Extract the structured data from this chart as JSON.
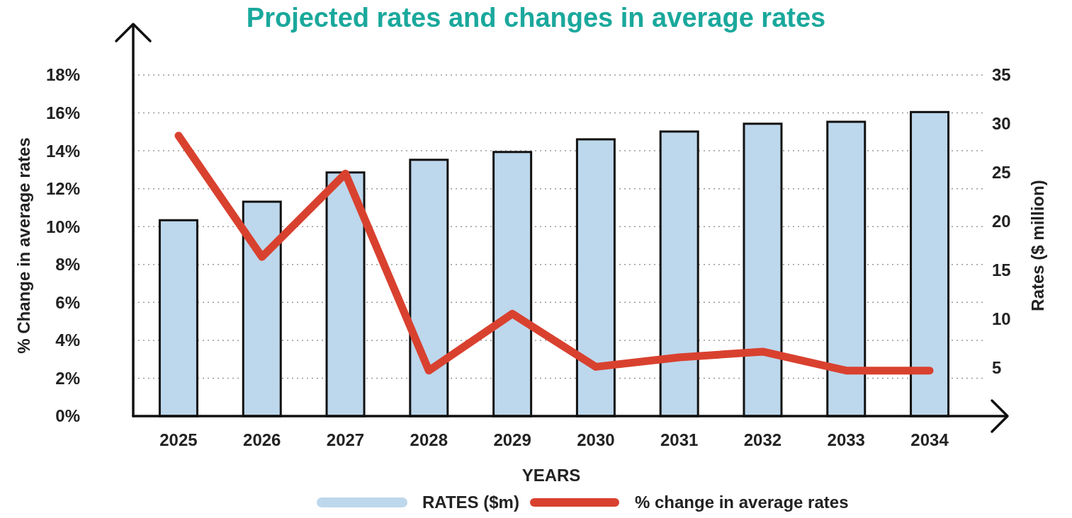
{
  "chart_data": {
    "type": "bar",
    "title": "Projected rates and changes in average rates",
    "xlabel": "YEARS",
    "ylabel": "% Change in average rates",
    "y2label": "Rates ($ million)",
    "categories": [
      "2025",
      "2026",
      "2027",
      "2028",
      "2029",
      "2030",
      "2031",
      "2032",
      "2033",
      "2034"
    ],
    "series": [
      {
        "name": "RATES ($m)",
        "axis": "y2",
        "color": "#bdd7ec",
        "values": [
          20.1,
          22.0,
          25.0,
          26.3,
          27.1,
          28.4,
          29.2,
          30.0,
          30.2,
          31.2
        ]
      },
      {
        "name": "% change in average rates",
        "type": "line",
        "color": "#d9412f",
        "values": [
          14.8,
          8.4,
          12.8,
          2.4,
          5.4,
          2.6,
          3.1,
          3.4,
          2.4,
          2.4
        ]
      }
    ],
    "ylim": [
      0,
      18
    ],
    "yticks": [
      {
        "value": 0,
        "label": "0%"
      },
      {
        "value": 2,
        "label": "2%"
      },
      {
        "value": 4,
        "label": "4%"
      },
      {
        "value": 6,
        "label": "6%"
      },
      {
        "value": 8,
        "label": "8%"
      },
      {
        "value": 10,
        "label": "10%"
      },
      {
        "value": 12,
        "label": "12%"
      },
      {
        "value": 14,
        "label": "14%"
      },
      {
        "value": 16,
        "label": "16%"
      },
      {
        "value": 18,
        "label": "18%"
      }
    ],
    "y2lim": [
      0,
      35
    ],
    "y2ticks": [
      5,
      10,
      15,
      20,
      25,
      30,
      35
    ],
    "grid": "y",
    "legend": "bottom",
    "marker": "none",
    "line_style": "solid"
  }
}
